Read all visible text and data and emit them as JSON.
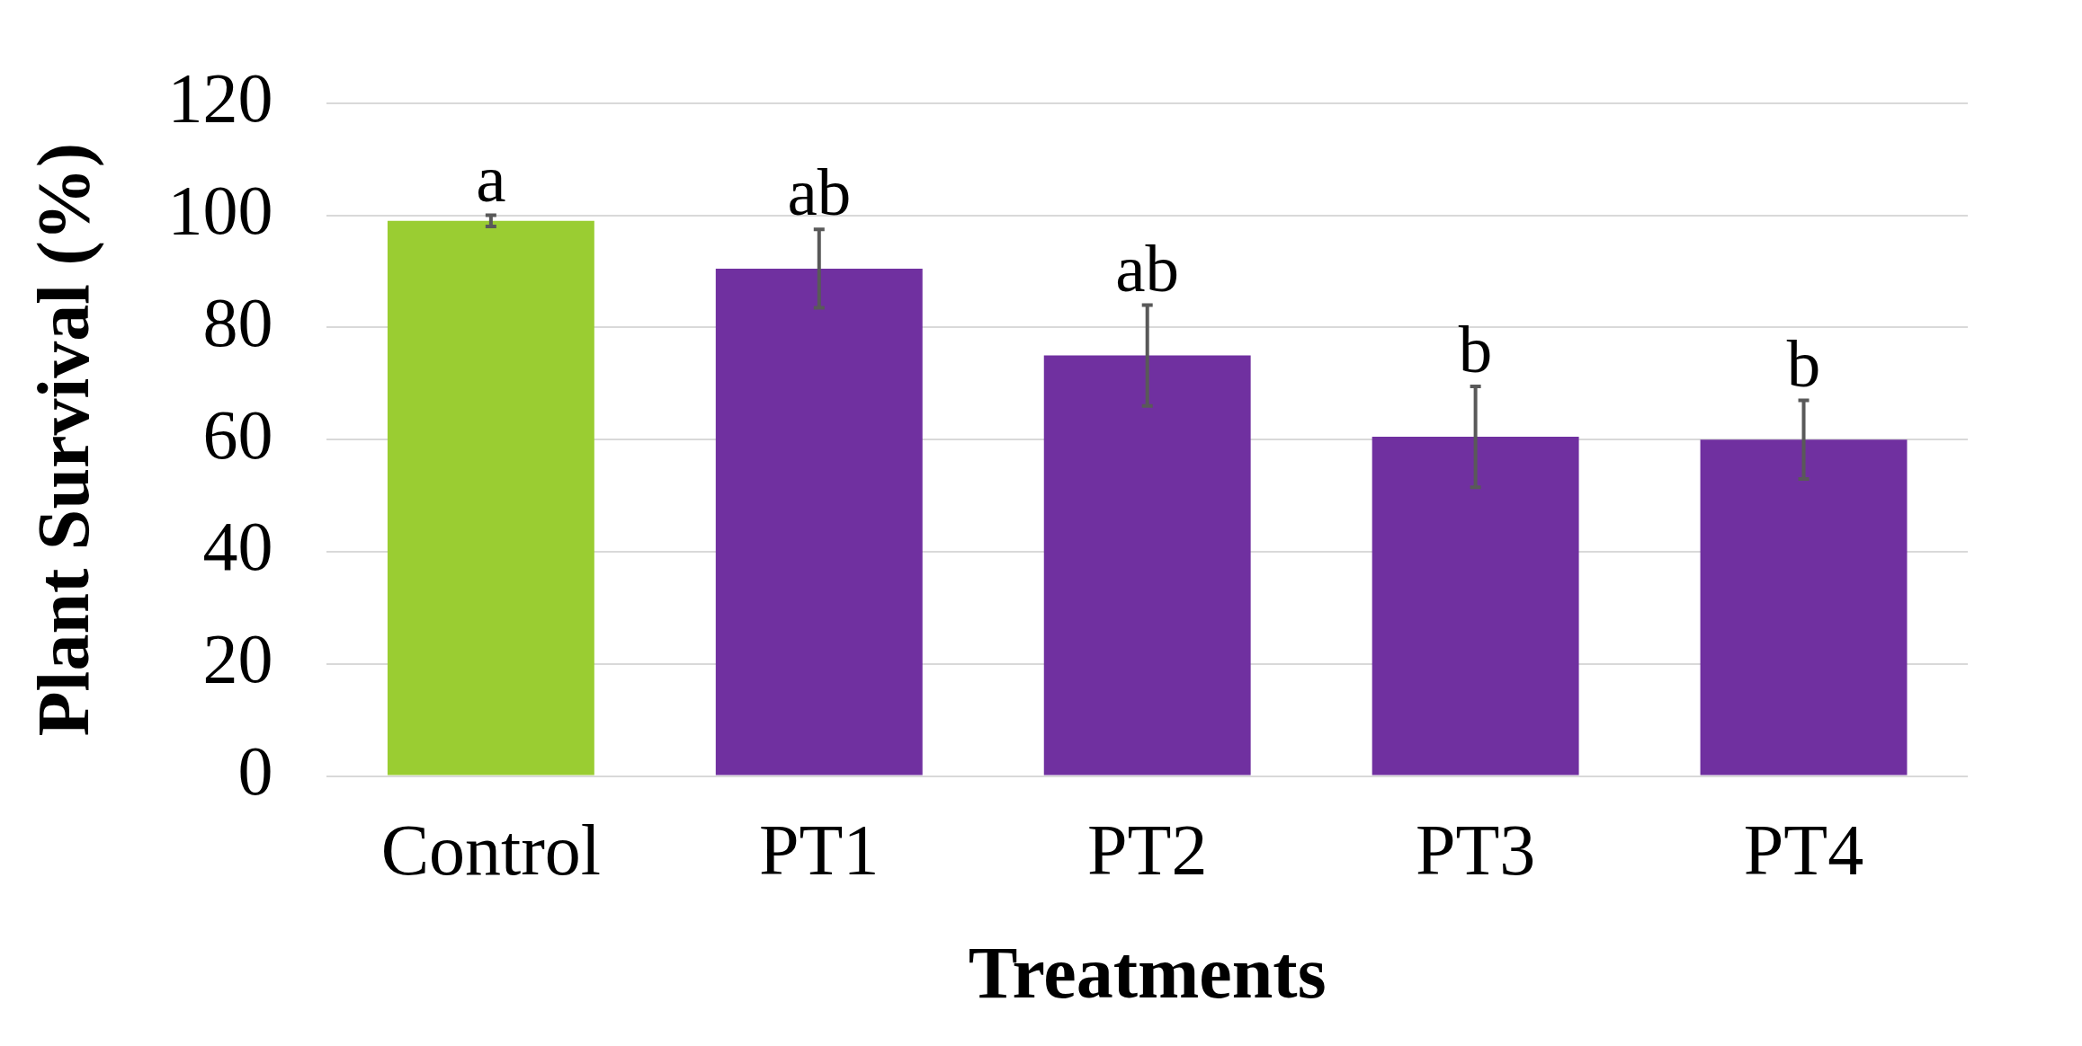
{
  "chart_data": {
    "type": "bar",
    "xlabel": "Treatments",
    "ylabel": "Plant Survival (%)",
    "categories": [
      "Control",
      "PT1",
      "PT2",
      "PT3",
      "PT4"
    ],
    "values": [
      99,
      90.5,
      75,
      60.5,
      60
    ],
    "colors": [
      "#9acd32",
      "#7030a0",
      "#7030a0",
      "#7030a0",
      "#7030a0"
    ],
    "errors": [
      1,
      7,
      9,
      9,
      7
    ],
    "ylim": [
      0,
      120
    ],
    "yticks": [
      0,
      20,
      40,
      60,
      80,
      100,
      120
    ],
    "grid": "y",
    "annotations": [
      {
        "text": "a",
        "x": "Control",
        "y": 100
      },
      {
        "text": "ab",
        "x": "PT1",
        "y": 97.5
      },
      {
        "text": "ab",
        "x": "PT2",
        "y": 84
      },
      {
        "text": "b",
        "x": "PT3",
        "y": 69.5
      },
      {
        "text": "b",
        "x": "PT4",
        "y": 67
      }
    ]
  }
}
